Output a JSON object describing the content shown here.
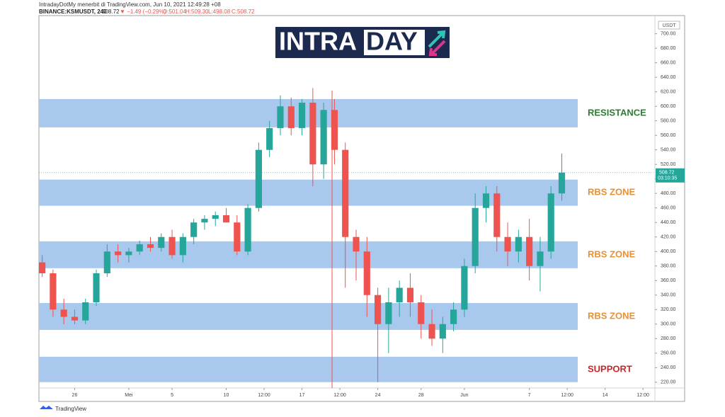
{
  "header": {
    "publisher": "IntradayDotMy menerbit di TradingView.com, Jun 10, 2021 12:49:28 +08",
    "symbol": "BINANCE:KSMUSDT, 240",
    "price": "508.72",
    "change": "▼ −1.49 (−0.29%)",
    "open": "O:501.04",
    "high": "H:509.30",
    "low": "L:498.08",
    "close": "C:508.72"
  },
  "logo": {
    "left": "INTRA",
    "right": "DAY"
  },
  "footer": "TradingView",
  "chart_data": {
    "type": "candlestick",
    "axis_unit": "USDT",
    "last_price": 508.72,
    "last_price_label": "508.72",
    "countdown": "03:10:35",
    "up_color": "#26a69a",
    "down_color": "#ef5350",
    "xlim": [
      -3.3,
      53.6
    ],
    "ylim": [
      212,
      725
    ],
    "xticks": [
      {
        "value": 0,
        "label": "26"
      },
      {
        "value": 5,
        "label": "Mei"
      },
      {
        "value": 9,
        "label": "5"
      },
      {
        "value": 14,
        "label": "10"
      },
      {
        "value": 17.5,
        "label": "12:00"
      },
      {
        "value": 21,
        "label": "17"
      },
      {
        "value": 24.5,
        "label": "12:00"
      },
      {
        "value": 28,
        "label": "24"
      },
      {
        "value": 32,
        "label": "28"
      },
      {
        "value": 36,
        "label": "Jun"
      },
      {
        "value": 42,
        "label": "7"
      },
      {
        "value": 45.5,
        "label": "12:00"
      },
      {
        "value": 49,
        "label": "14"
      },
      {
        "value": 52.5,
        "label": "12:00"
      }
    ],
    "yticks": [
      {
        "value": 220,
        "label": "220.00"
      },
      {
        "value": 240,
        "label": "240.00"
      },
      {
        "value": 260,
        "label": "260.00"
      },
      {
        "value": 280,
        "label": "280.00"
      },
      {
        "value": 300,
        "label": "300.00"
      },
      {
        "value": 320,
        "label": "320.00"
      },
      {
        "value": 340,
        "label": "340.00"
      },
      {
        "value": 360,
        "label": "360.00"
      },
      {
        "value": 380,
        "label": "380.00"
      },
      {
        "value": 400,
        "label": "400.00"
      },
      {
        "value": 420,
        "label": "420.00"
      },
      {
        "value": 440,
        "label": "440.00"
      },
      {
        "value": 460,
        "label": "460.00"
      },
      {
        "value": 480,
        "label": "480.00"
      },
      {
        "value": 500,
        "label": "500.00"
      },
      {
        "value": 520,
        "label": "520.00"
      },
      {
        "value": 540,
        "label": "540.00"
      },
      {
        "value": 560,
        "label": "560.00"
      },
      {
        "value": 580,
        "label": "580.00"
      },
      {
        "value": 600,
        "label": "600.00"
      },
      {
        "value": 620,
        "label": "620.00"
      },
      {
        "value": 640,
        "label": "640.00"
      },
      {
        "value": 660,
        "label": "660.00"
      },
      {
        "value": 680,
        "label": "680.00"
      },
      {
        "value": 700,
        "label": "700.00"
      }
    ],
    "zones": [
      {
        "label": "RESISTANCE",
        "low": 571,
        "high": 610,
        "color": "#2e7d32"
      },
      {
        "label": "RBS ZONE",
        "low": 463,
        "high": 499,
        "color": "#e69138"
      },
      {
        "label": "RBS ZONE",
        "low": 377,
        "high": 414,
        "color": "#e69138"
      },
      {
        "label": "RBS ZONE",
        "low": 292,
        "high": 329,
        "color": "#e69138"
      },
      {
        "label": "SUPPORT",
        "low": 220,
        "high": 255,
        "color": "#c62828"
      }
    ],
    "zone_color": "#a8c8ee",
    "x": [
      -3,
      -2,
      -1,
      0,
      1,
      2,
      3,
      4,
      5,
      6,
      7,
      8,
      9,
      10,
      11,
      12,
      13,
      14,
      15,
      16,
      17,
      18,
      19,
      20,
      21,
      22,
      23,
      24,
      25,
      26,
      27,
      28,
      29,
      30,
      31,
      32,
      33,
      34,
      35,
      36,
      37,
      38,
      39,
      40,
      41,
      42,
      43,
      44,
      45
    ],
    "open": [
      385,
      370,
      320,
      310,
      305,
      330,
      370,
      400,
      395,
      400,
      410,
      405,
      420,
      395,
      420,
      440,
      445,
      450,
      440,
      400,
      460,
      540,
      570,
      600,
      570,
      605,
      520,
      595,
      540,
      420,
      400,
      340,
      300,
      330,
      350,
      330,
      300,
      280,
      300,
      320,
      380,
      460,
      480,
      420,
      400,
      420,
      380,
      400,
      480
    ],
    "high": [
      395,
      375,
      335,
      320,
      335,
      375,
      410,
      410,
      405,
      415,
      420,
      425,
      430,
      425,
      445,
      450,
      455,
      460,
      450,
      465,
      550,
      580,
      615,
      612,
      610,
      625,
      605,
      610,
      550,
      430,
      420,
      350,
      350,
      360,
      370,
      340,
      320,
      310,
      330,
      390,
      480,
      490,
      490,
      440,
      430,
      445,
      420,
      490,
      535
    ],
    "low": [
      365,
      310,
      300,
      300,
      300,
      325,
      365,
      385,
      385,
      395,
      400,
      400,
      390,
      385,
      410,
      430,
      435,
      440,
      395,
      395,
      455,
      530,
      560,
      560,
      560,
      490,
      500,
      520,
      350,
      360,
      310,
      220,
      260,
      310,
      310,
      280,
      270,
      260,
      290,
      310,
      370,
      440,
      400,
      380,
      385,
      360,
      345,
      390,
      470
    ],
    "close": [
      370,
      320,
      310,
      305,
      330,
      370,
      400,
      395,
      400,
      410,
      405,
      420,
      395,
      420,
      440,
      445,
      450,
      440,
      400,
      460,
      540,
      570,
      600,
      570,
      605,
      520,
      595,
      540,
      420,
      400,
      340,
      300,
      330,
      350,
      330,
      300,
      280,
      300,
      320,
      380,
      460,
      480,
      420,
      400,
      420,
      380,
      400,
      480,
      508.72
    ]
  }
}
